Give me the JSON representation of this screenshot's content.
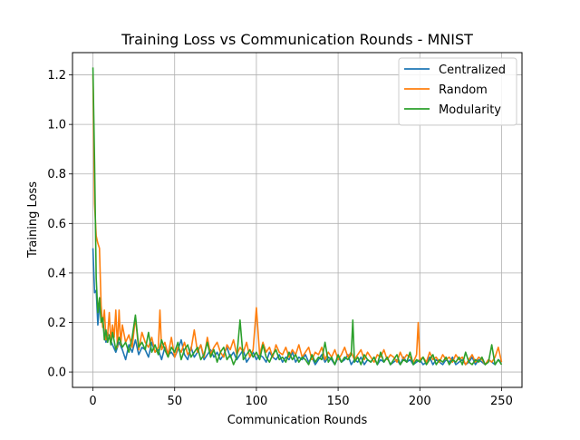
{
  "chart_data": {
    "type": "line",
    "title": "Training Loss vs Communication Rounds - MNIST",
    "xlabel": "Communication Rounds",
    "ylabel": "Training Loss",
    "xlim": [
      -12.5,
      262.5
    ],
    "ylim": [
      -0.062,
      1.29
    ],
    "xticks": [
      "0",
      "50",
      "100",
      "150",
      "200",
      "250"
    ],
    "yticks": [
      "0.0",
      "0.2",
      "0.4",
      "0.6",
      "0.8",
      "1.0",
      "1.2"
    ],
    "grid": true,
    "legend_position": "top-right",
    "series": [
      {
        "name": "Centralized",
        "color": "#1f77b4",
        "x": [
          0,
          1,
          2,
          3,
          4,
          5,
          6,
          7,
          8,
          9,
          10,
          12,
          14,
          16,
          18,
          20,
          22,
          24,
          26,
          28,
          30,
          32,
          34,
          36,
          38,
          40,
          42,
          44,
          46,
          48,
          50,
          52,
          54,
          56,
          58,
          60,
          62,
          64,
          66,
          68,
          70,
          72,
          74,
          76,
          78,
          80,
          82,
          84,
          86,
          88,
          90,
          92,
          94,
          96,
          98,
          100,
          102,
          104,
          106,
          108,
          110,
          112,
          114,
          116,
          118,
          120,
          122,
          124,
          126,
          128,
          130,
          132,
          134,
          136,
          138,
          140,
          142,
          144,
          146,
          148,
          150,
          152,
          154,
          156,
          158,
          160,
          162,
          164,
          166,
          168,
          170,
          172,
          174,
          176,
          178,
          180,
          182,
          184,
          186,
          188,
          190,
          192,
          194,
          196,
          198,
          200,
          202,
          204,
          206,
          208,
          210,
          212,
          214,
          216,
          218,
          220,
          222,
          224,
          226,
          228,
          230,
          232,
          234,
          236,
          238,
          240,
          242,
          244,
          246,
          248,
          250
        ],
        "y": [
          0.5,
          0.32,
          0.33,
          0.19,
          0.27,
          0.23,
          0.21,
          0.15,
          0.12,
          0.16,
          0.14,
          0.11,
          0.08,
          0.12,
          0.09,
          0.05,
          0.11,
          0.08,
          0.13,
          0.07,
          0.1,
          0.09,
          0.06,
          0.12,
          0.08,
          0.09,
          0.05,
          0.1,
          0.07,
          0.08,
          0.06,
          0.09,
          0.13,
          0.07,
          0.05,
          0.1,
          0.06,
          0.08,
          0.11,
          0.05,
          0.07,
          0.09,
          0.06,
          0.08,
          0.05,
          0.07,
          0.1,
          0.06,
          0.08,
          0.05,
          0.07,
          0.09,
          0.04,
          0.06,
          0.08,
          0.05,
          0.07,
          0.06,
          0.04,
          0.08,
          0.06,
          0.05,
          0.07,
          0.04,
          0.06,
          0.05,
          0.08,
          0.04,
          0.06,
          0.05,
          0.07,
          0.04,
          0.06,
          0.03,
          0.05,
          0.07,
          0.04,
          0.06,
          0.05,
          0.03,
          0.06,
          0.04,
          0.05,
          0.07,
          0.03,
          0.05,
          0.04,
          0.06,
          0.03,
          0.05,
          0.04,
          0.06,
          0.03,
          0.05,
          0.04,
          0.06,
          0.03,
          0.04,
          0.05,
          0.03,
          0.06,
          0.04,
          0.05,
          0.03,
          0.04,
          0.05,
          0.03,
          0.04,
          0.06,
          0.03,
          0.05,
          0.04,
          0.03,
          0.05,
          0.04,
          0.06,
          0.03,
          0.04,
          0.05,
          0.03,
          0.04,
          0.06,
          0.03,
          0.05,
          0.04,
          0.03,
          0.05,
          0.04,
          0.03,
          0.05,
          0.04
        ]
      },
      {
        "name": "Random",
        "color": "#ff7f0e",
        "x": [
          0,
          1,
          2,
          3,
          4,
          5,
          6,
          7,
          8,
          9,
          10,
          11,
          12,
          13,
          14,
          15,
          16,
          17,
          18,
          20,
          22,
          24,
          26,
          28,
          30,
          32,
          34,
          36,
          38,
          40,
          41,
          42,
          44,
          46,
          48,
          50,
          52,
          54,
          56,
          58,
          60,
          62,
          64,
          66,
          68,
          70,
          72,
          74,
          76,
          78,
          80,
          82,
          84,
          86,
          88,
          90,
          92,
          94,
          96,
          98,
          100,
          102,
          104,
          106,
          108,
          110,
          112,
          114,
          116,
          118,
          120,
          122,
          124,
          126,
          128,
          130,
          132,
          134,
          136,
          138,
          140,
          142,
          144,
          146,
          148,
          150,
          152,
          154,
          156,
          158,
          160,
          162,
          164,
          166,
          168,
          170,
          172,
          174,
          176,
          178,
          180,
          182,
          184,
          186,
          188,
          190,
          192,
          194,
          196,
          198,
          199,
          200,
          202,
          204,
          206,
          208,
          210,
          212,
          214,
          216,
          218,
          220,
          222,
          224,
          226,
          228,
          230,
          232,
          234,
          236,
          238,
          240,
          242,
          244,
          246,
          248,
          250
        ],
        "y": [
          1.2,
          0.68,
          0.55,
          0.52,
          0.5,
          0.27,
          0.18,
          0.25,
          0.13,
          0.15,
          0.24,
          0.12,
          0.19,
          0.14,
          0.25,
          0.1,
          0.25,
          0.11,
          0.19,
          0.12,
          0.15,
          0.1,
          0.22,
          0.09,
          0.16,
          0.12,
          0.1,
          0.14,
          0.08,
          0.1,
          0.25,
          0.09,
          0.12,
          0.07,
          0.14,
          0.06,
          0.1,
          0.08,
          0.12,
          0.07,
          0.09,
          0.17,
          0.08,
          0.11,
          0.06,
          0.14,
          0.07,
          0.1,
          0.12,
          0.08,
          0.06,
          0.11,
          0.09,
          0.13,
          0.07,
          0.1,
          0.08,
          0.12,
          0.06,
          0.09,
          0.26,
          0.07,
          0.12,
          0.08,
          0.1,
          0.06,
          0.11,
          0.08,
          0.07,
          0.1,
          0.06,
          0.09,
          0.07,
          0.11,
          0.06,
          0.08,
          0.1,
          0.05,
          0.08,
          0.07,
          0.1,
          0.05,
          0.08,
          0.06,
          0.09,
          0.05,
          0.07,
          0.1,
          0.06,
          0.08,
          0.05,
          0.07,
          0.09,
          0.05,
          0.08,
          0.06,
          0.04,
          0.07,
          0.06,
          0.09,
          0.05,
          0.07,
          0.06,
          0.04,
          0.08,
          0.05,
          0.07,
          0.06,
          0.04,
          0.07,
          0.2,
          0.05,
          0.06,
          0.04,
          0.08,
          0.05,
          0.06,
          0.04,
          0.07,
          0.05,
          0.06,
          0.04,
          0.07,
          0.05,
          0.06,
          0.03,
          0.05,
          0.07,
          0.04,
          0.06,
          0.05,
          0.03,
          0.05,
          0.04,
          0.06,
          0.1,
          0.04
        ]
      },
      {
        "name": "Modularity",
        "color": "#2ca02c",
        "x": [
          0,
          1,
          2,
          3,
          4,
          5,
          6,
          7,
          8,
          9,
          10,
          11,
          12,
          14,
          16,
          18,
          20,
          22,
          24,
          26,
          28,
          30,
          32,
          34,
          36,
          38,
          40,
          42,
          44,
          46,
          48,
          50,
          52,
          54,
          56,
          58,
          60,
          62,
          64,
          66,
          68,
          70,
          72,
          74,
          76,
          78,
          80,
          82,
          84,
          86,
          88,
          90,
          92,
          94,
          96,
          98,
          100,
          102,
          104,
          106,
          108,
          110,
          112,
          114,
          116,
          118,
          120,
          122,
          124,
          126,
          128,
          130,
          132,
          134,
          136,
          138,
          140,
          142,
          144,
          146,
          148,
          150,
          152,
          154,
          156,
          158,
          159,
          160,
          162,
          164,
          166,
          168,
          170,
          172,
          174,
          176,
          178,
          180,
          182,
          184,
          186,
          188,
          190,
          192,
          194,
          196,
          198,
          200,
          202,
          204,
          206,
          208,
          210,
          212,
          214,
          216,
          218,
          220,
          222,
          224,
          226,
          228,
          230,
          232,
          234,
          236,
          238,
          240,
          242,
          244,
          246,
          248,
          250
        ],
        "y": [
          1.23,
          0.85,
          0.38,
          0.24,
          0.3,
          0.2,
          0.22,
          0.13,
          0.17,
          0.12,
          0.15,
          0.11,
          0.16,
          0.09,
          0.14,
          0.1,
          0.12,
          0.08,
          0.14,
          0.23,
          0.1,
          0.12,
          0.09,
          0.16,
          0.08,
          0.11,
          0.07,
          0.13,
          0.09,
          0.06,
          0.1,
          0.08,
          0.12,
          0.05,
          0.09,
          0.11,
          0.06,
          0.08,
          0.1,
          0.05,
          0.07,
          0.12,
          0.06,
          0.09,
          0.04,
          0.08,
          0.1,
          0.05,
          0.07,
          0.03,
          0.06,
          0.21,
          0.05,
          0.07,
          0.09,
          0.06,
          0.08,
          0.05,
          0.11,
          0.06,
          0.04,
          0.07,
          0.09,
          0.05,
          0.06,
          0.04,
          0.08,
          0.05,
          0.07,
          0.04,
          0.06,
          0.05,
          0.03,
          0.07,
          0.04,
          0.06,
          0.05,
          0.12,
          0.04,
          0.06,
          0.03,
          0.07,
          0.04,
          0.06,
          0.05,
          0.07,
          0.21,
          0.04,
          0.06,
          0.03,
          0.07,
          0.05,
          0.04,
          0.06,
          0.03,
          0.08,
          0.04,
          0.06,
          0.03,
          0.05,
          0.07,
          0.03,
          0.05,
          0.04,
          0.08,
          0.03,
          0.05,
          0.04,
          0.06,
          0.03,
          0.05,
          0.07,
          0.03,
          0.05,
          0.04,
          0.06,
          0.03,
          0.05,
          0.04,
          0.06,
          0.03,
          0.08,
          0.04,
          0.03,
          0.05,
          0.04,
          0.06,
          0.03,
          0.04,
          0.11,
          0.03,
          0.05,
          0.03
        ]
      }
    ]
  }
}
